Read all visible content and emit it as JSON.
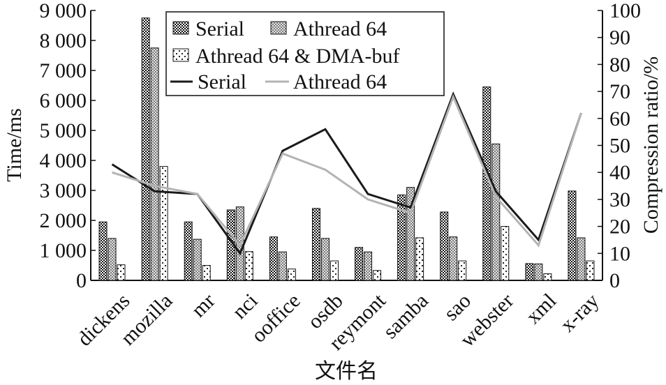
{
  "chart_data": {
    "type": "bar",
    "xlabel": "文件名",
    "ylabel": "Time/ms",
    "y2label": "Compression ratio/%",
    "ylim": [
      0,
      9000
    ],
    "y2lim": [
      0,
      100
    ],
    "yticks": [
      "0",
      "1 000",
      "2 000",
      "3 000",
      "4 000",
      "5 000",
      "6 000",
      "7 000",
      "8 000",
      "9 000"
    ],
    "y2ticks": [
      "0",
      "10",
      "20",
      "30",
      "40",
      "50",
      "60",
      "70",
      "80",
      "90",
      "100"
    ],
    "grid": false,
    "legend_position": "top-center",
    "categories": [
      "dickens",
      "mozilla",
      "mr",
      "nci",
      "ooffice",
      "osdb",
      "reymont",
      "samba",
      "sao",
      "webster",
      "xml",
      "x-ray"
    ],
    "series": [
      {
        "name": "Serial",
        "kind": "bar",
        "axis": "left",
        "pattern": "checker",
        "values": [
          1950,
          8750,
          1950,
          2350,
          1450,
          2400,
          1100,
          2850,
          2280,
          6450,
          560,
          2980
        ]
      },
      {
        "name": "Athread 64",
        "kind": "bar",
        "axis": "left",
        "pattern": "gray-checker",
        "values": [
          1400,
          7750,
          1370,
          2450,
          950,
          1400,
          950,
          3100,
          1450,
          4550,
          550,
          1420
        ]
      },
      {
        "name": "Athread 64 & DMA-buf",
        "kind": "bar",
        "axis": "left",
        "pattern": "sparse",
        "values": [
          520,
          3800,
          500,
          960,
          380,
          650,
          330,
          1420,
          650,
          1800,
          220,
          650
        ]
      },
      {
        "name": "Serial",
        "kind": "line",
        "axis": "right",
        "color": "#1a1a1a",
        "values": [
          43,
          33,
          32,
          10,
          48,
          56,
          32,
          27,
          69,
          33,
          15,
          62
        ]
      },
      {
        "name": "Athread 64",
        "kind": "line",
        "axis": "right",
        "color": "#b3b3b3",
        "values": [
          40,
          35,
          32,
          13,
          47,
          41,
          30,
          25,
          68,
          31,
          13,
          62
        ]
      }
    ]
  }
}
